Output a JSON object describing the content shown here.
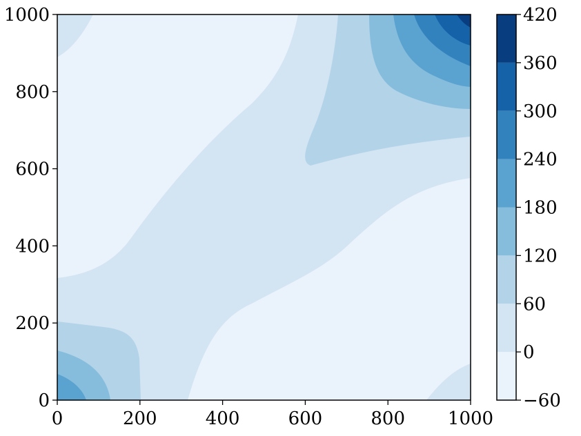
{
  "chart_data": {
    "type": "contourf",
    "title": "",
    "xlabel": "",
    "ylabel": "",
    "xlim": [
      0,
      1000
    ],
    "ylim": [
      0,
      1000
    ],
    "x_ticks": [
      0,
      200,
      400,
      600,
      800,
      1000
    ],
    "y_ticks": [
      0,
      200,
      400,
      600,
      800,
      1000
    ],
    "colorbar": {
      "levels": [
        -60,
        0,
        60,
        120,
        180,
        240,
        300,
        360,
        420
      ],
      "tick_labels": [
        "−60",
        "0",
        "60",
        "120",
        "180",
        "240",
        "300",
        "360",
        "420"
      ],
      "colormap": "Blues",
      "colors": [
        "#eaf2fb",
        "#d3e4f3",
        "#b3d3e8",
        "#86bddc",
        "#5aa2cf",
        "#3282bd",
        "#1562a8",
        "#083d7f"
      ]
    },
    "regions": [
      {
        "name": "corner-top-right",
        "center": [
          1000,
          1000
        ],
        "peak": 420,
        "level_band": "360-420"
      },
      {
        "name": "corner-bottom-left",
        "center": [
          0,
          0
        ],
        "peak": 180,
        "level_band": "180-240"
      },
      {
        "name": "corner-top-left",
        "center": [
          0,
          1000
        ],
        "level_band": "0-60"
      },
      {
        "name": "corner-bottom-right",
        "center": [
          1000,
          0
        ],
        "level_band": "0-60"
      }
    ],
    "grid": false
  }
}
